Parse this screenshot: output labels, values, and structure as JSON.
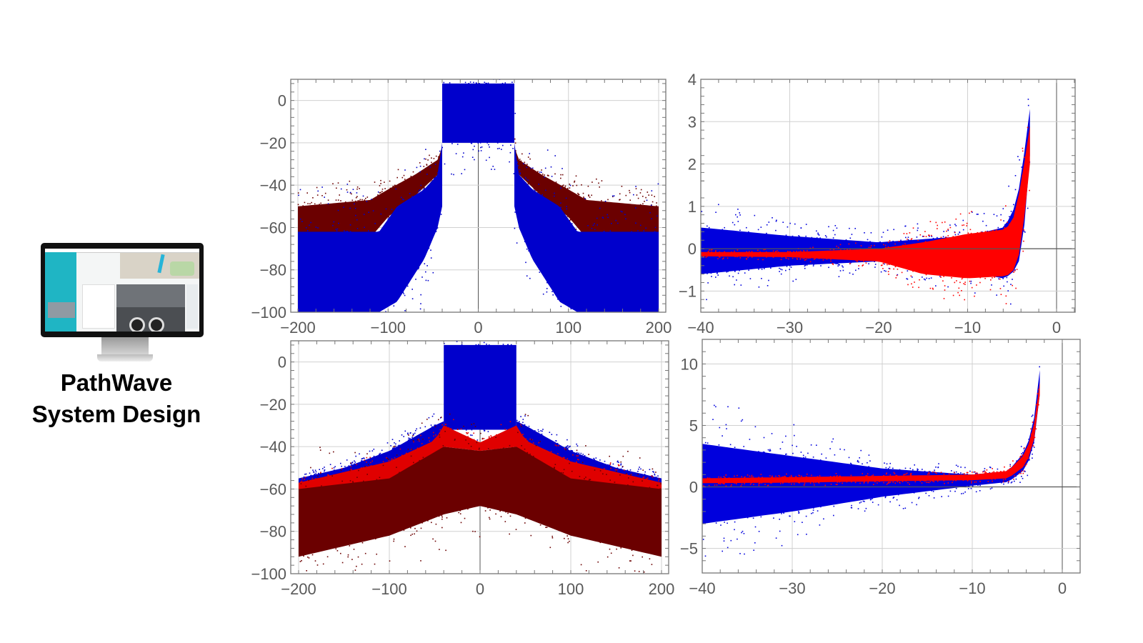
{
  "brand": {
    "line1": "PathWave",
    "line2": "System Design"
  },
  "monitor": {
    "icon": "monitor-with-dashboard-screenshot",
    "screen_accent": "#1fb5c4"
  },
  "chart_data": [
    {
      "type": "scatter",
      "title": "",
      "xlabel": "",
      "ylabel": "",
      "xlim": [
        -200,
        200
      ],
      "ylim": [
        -100,
        10
      ],
      "xticks": [
        -200,
        -100,
        0,
        100,
        200
      ],
      "xtick_labels": [
        "−200",
        "−100",
        "0",
        "100",
        "200"
      ],
      "yticks": [
        0,
        -20,
        -40,
        -60,
        -80,
        -100
      ],
      "ytick_labels": [
        "0",
        "−20",
        "−40",
        "−60",
        "−80",
        "−100"
      ],
      "grid": true,
      "series": [
        {
          "color": "#6b0000",
          "bands": [
            {
              "x": [
                -200,
                -120,
                -100,
                -70,
                -45,
                -40
              ],
              "top": [
                -50,
                -47,
                -42,
                -35,
                -28,
                -22
              ],
              "bottom": [
                -63,
                -65,
                -55,
                -45,
                -35,
                -30
              ]
            },
            {
              "x": [
                40,
                45,
                70,
                100,
                120,
                200
              ],
              "top": [
                -22,
                -28,
                -35,
                -42,
                -47,
                -50
              ],
              "bottom": [
                -30,
                -35,
                -45,
                -55,
                -65,
                -63
              ]
            }
          ]
        },
        {
          "color": "#0000cc",
          "bands": [
            {
              "x": [
                -200,
                -110,
                -90,
                -60,
                -45,
                -40
              ],
              "top": [
                -62,
                -62,
                -50,
                -42,
                -35,
                -20
              ],
              "bottom": [
                -100,
                -100,
                -95,
                -75,
                -60,
                -50
              ]
            },
            {
              "x": [
                -40,
                40
              ],
              "top": [
                8,
                8
              ],
              "bottom": [
                -20,
                -20
              ]
            },
            {
              "x": [
                40,
                45,
                60,
                90,
                110,
                200
              ],
              "top": [
                -20,
                -35,
                -42,
                -50,
                -62,
                -62
              ],
              "bottom": [
                -50,
                -60,
                -75,
                -95,
                -100,
                -100
              ]
            }
          ]
        }
      ]
    },
    {
      "type": "scatter",
      "title": "",
      "xlabel": "",
      "ylabel": "",
      "xlim": [
        -40,
        2
      ],
      "ylim": [
        -1.5,
        4
      ],
      "xticks": [
        -40,
        -30,
        -20,
        -10,
        0
      ],
      "xtick_labels": [
        "−40",
        "−30",
        "−20",
        "−10",
        "0"
      ],
      "yticks": [
        4,
        3,
        2,
        1,
        0,
        -1
      ],
      "ytick_labels": [
        "4",
        "3",
        "2",
        "1",
        "0",
        "−1"
      ],
      "grid": true,
      "series": [
        {
          "color": "#0000dd",
          "bands": [
            {
              "x": [
                -40,
                -30,
                -20,
                -10,
                -6,
                -5,
                -4,
                -3.5,
                -3
              ],
              "top": [
                0.5,
                0.3,
                0.15,
                0.3,
                0.5,
                0.8,
                1.6,
                2.5,
                3.3
              ],
              "bottom": [
                -0.6,
                -0.4,
                -0.3,
                -0.55,
                -0.7,
                -0.6,
                -0.2,
                0.8,
                2.2
              ]
            }
          ]
        },
        {
          "color": "#ff0000",
          "bands": [
            {
              "x": [
                -40,
                -30,
                -20,
                -15,
                -10,
                -6,
                -5,
                -4,
                -3.5,
                -3
              ],
              "top": [
                -0.08,
                -0.08,
                0.0,
                0.15,
                0.35,
                0.45,
                0.6,
                1.5,
                2.2,
                2.9
              ],
              "bottom": [
                -0.18,
                -0.2,
                -0.3,
                -0.6,
                -0.7,
                -0.65,
                -0.6,
                0.0,
                1.0,
                2.0
              ]
            }
          ]
        }
      ]
    },
    {
      "type": "scatter",
      "title": "",
      "xlabel": "",
      "ylabel": "",
      "xlim": [
        -200,
        200
      ],
      "ylim": [
        -100,
        10
      ],
      "xticks": [
        -200,
        -100,
        0,
        100,
        200
      ],
      "xtick_labels": [
        "−200",
        "−100",
        "0",
        "100",
        "200"
      ],
      "yticks": [
        0,
        -20,
        -40,
        -60,
        -80,
        -100
      ],
      "ytick_labels": [
        "0",
        "−20",
        "−40",
        "−60",
        "−80",
        "−100"
      ],
      "grid": true,
      "series": [
        {
          "color": "#0000cc",
          "bands": [
            {
              "x": [
                -200,
                -150,
                -100,
                -50,
                -40
              ],
              "top": [
                -55,
                -50,
                -42,
                -30,
                -28
              ],
              "bottom": [
                -60,
                -56,
                -50,
                -40,
                -34
              ]
            },
            {
              "x": [
                -40,
                40
              ],
              "top": [
                8,
                8
              ],
              "bottom": [
                -32,
                -32
              ]
            },
            {
              "x": [
                40,
                50,
                100,
                150,
                200
              ],
              "top": [
                -28,
                -30,
                -42,
                -50,
                -55
              ],
              "bottom": [
                -34,
                -40,
                -50,
                -56,
                -60
              ]
            }
          ]
        },
        {
          "color": "#e00000",
          "bands": [
            {
              "x": [
                -200,
                -100,
                -50,
                -40,
                0,
                40,
                50,
                100,
                200
              ],
              "top": [
                -57,
                -47,
                -37,
                -30,
                -38,
                -30,
                -37,
                -47,
                -57
              ],
              "bottom": [
                -62,
                -56,
                -46,
                -40,
                -42,
                -40,
                -46,
                -56,
                -62
              ]
            }
          ]
        },
        {
          "color": "#6b0000",
          "bands": [
            {
              "x": [
                -200,
                -100,
                -40,
                0,
                40,
                100,
                200
              ],
              "top": [
                -60,
                -55,
                -40,
                -42,
                -40,
                -55,
                -60
              ],
              "bottom": [
                -92,
                -82,
                -72,
                -68,
                -72,
                -82,
                -92
              ]
            }
          ]
        }
      ]
    },
    {
      "type": "scatter",
      "title": "",
      "xlabel": "",
      "ylabel": "",
      "xlim": [
        -40,
        2
      ],
      "ylim": [
        -7,
        12
      ],
      "xticks": [
        -40,
        -30,
        -20,
        -10,
        0
      ],
      "xtick_labels": [
        "−40",
        "−30",
        "−20",
        "−10",
        "0"
      ],
      "yticks": [
        10,
        5,
        0,
        -5
      ],
      "ytick_labels": [
        "10",
        "5",
        "0",
        "−5"
      ],
      "grid": true,
      "series": [
        {
          "color": "#0000dd",
          "bands": [
            {
              "x": [
                -40,
                -30,
                -20,
                -10,
                -6,
                -4,
                -3,
                -2.5
              ],
              "top": [
                3.5,
                2.5,
                1.5,
                1.0,
                1.3,
                3.0,
                6.0,
                9.5
              ],
              "bottom": [
                -3.0,
                -2.0,
                -0.8,
                0.1,
                0.4,
                1.5,
                4.0,
                7.5
              ]
            }
          ]
        },
        {
          "color": "#ff0000",
          "bands": [
            {
              "x": [
                -40,
                -30,
                -20,
                -10,
                -6,
                -4,
                -3,
                -2.5
              ],
              "top": [
                0.7,
                0.8,
                0.9,
                1.0,
                1.3,
                2.8,
                5.5,
                8.5
              ],
              "bottom": [
                0.3,
                0.35,
                0.45,
                0.55,
                0.7,
                1.8,
                4.2,
                7.5
              ]
            }
          ]
        }
      ]
    }
  ]
}
